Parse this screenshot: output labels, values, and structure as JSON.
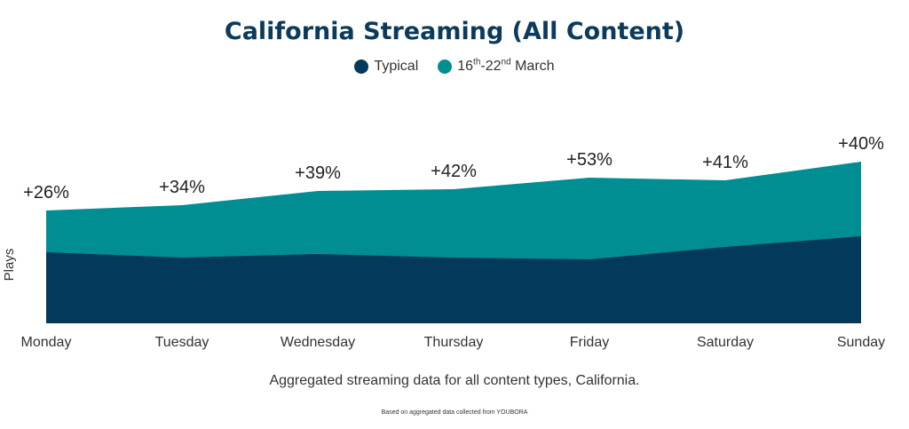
{
  "chart_data": {
    "type": "area",
    "title": "California Streaming (All Content)",
    "ylabel": "Plays",
    "xlabel": "",
    "categories": [
      "Monday",
      "Tuesday",
      "Wednesday",
      "Thursday",
      "Friday",
      "Saturday",
      "Sunday"
    ],
    "ylim": [
      0,
      200
    ],
    "grid": false,
    "legend_position": "top-center",
    "series": [
      {
        "name": "Typical",
        "color": "#033a5c",
        "values": [
          80,
          74,
          78,
          74,
          72,
          86,
          98
        ]
      },
      {
        "name": "16th-22nd March",
        "color": "#008e93",
        "values": [
          127,
          133,
          149,
          151,
          164,
          161,
          182
        ]
      }
    ],
    "annotations": [
      "+26%",
      "+34%",
      "+39%",
      "+42%",
      "+53%",
      "+41%",
      "+40%"
    ]
  },
  "legend": {
    "typical": "Typical",
    "march_pre": "16",
    "march_sup1": "th",
    "march_mid": "-22",
    "march_sup2": "nd",
    "march_post": " March"
  },
  "caption": "Aggregated streaming data for all content types, California.",
  "source": "Based on aggregated data collected from YOUBORA"
}
